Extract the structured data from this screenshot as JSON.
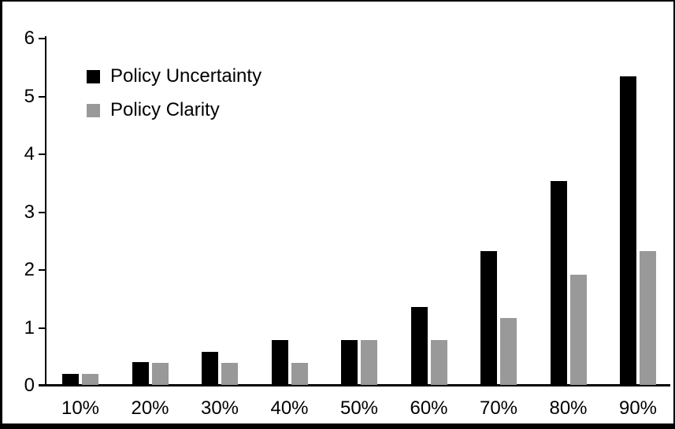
{
  "chart_data": {
    "type": "bar",
    "title": "",
    "xlabel": "",
    "ylabel": "",
    "categories": [
      "10%",
      "20%",
      "30%",
      "40%",
      "50%",
      "60%",
      "70%",
      "80%",
      "90%"
    ],
    "series": [
      {
        "name": "Policy Uncertainty",
        "color": "#000000",
        "values": [
          0.19,
          0.39,
          0.57,
          0.77,
          0.77,
          1.35,
          2.31,
          3.52,
          5.33
        ]
      },
      {
        "name": "Policy Clarity",
        "color": "#999999",
        "values": [
          0.19,
          0.38,
          0.38,
          0.38,
          0.77,
          0.77,
          1.15,
          1.9,
          2.31
        ]
      }
    ],
    "ylim": [
      0,
      6
    ],
    "yticks": [
      "0",
      "1",
      "2",
      "3",
      "4",
      "5",
      "6"
    ],
    "grid": false,
    "legend_position": "top-left-inside",
    "frame_color": "#000000",
    "background_color": "#ffffff"
  }
}
